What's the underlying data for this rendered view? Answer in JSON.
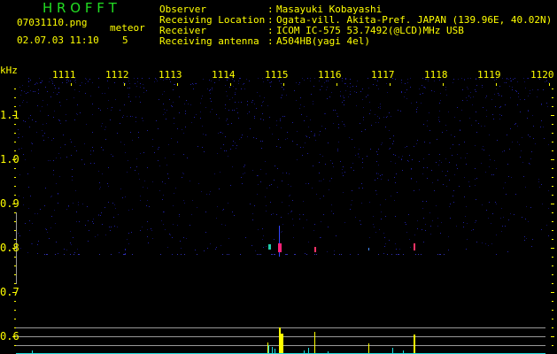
{
  "header": {
    "title": "H R O F F T",
    "filename": "07031110.png",
    "datetime": "02.07.03 11:10",
    "meteor_label": "meteor",
    "meteor_count": "5"
  },
  "info": [
    {
      "label": "Observer",
      "value": "Masayuki Kobayashi"
    },
    {
      "label": "Receiving Location",
      "value": "Ogata-vill. Akita-Pref. JAPAN (139.96E, 40.02N)"
    },
    {
      "label": "Receiver",
      "value": "ICOM IC-575 53.7492(@LCD)MHz USB"
    },
    {
      "label": "Receiving antenna",
      "value": "A504HB(yagi 4el)"
    }
  ],
  "axes": {
    "unit": "kHz",
    "x_ticks": [
      "1111",
      "1112",
      "1113",
      "1114",
      "1115",
      "1116",
      "1117",
      "1118",
      "1119",
      "1120"
    ],
    "y_ticks": [
      "1.1",
      "1.0",
      "0.9",
      "0.8",
      "0.7",
      "0.6"
    ]
  },
  "colors": {
    "axis": "#ffff00",
    "title": "#22dd22",
    "noise": "#1a1a88",
    "bars": "#ffff00",
    "baseline": "#22dddd",
    "gridline": "#999999"
  }
}
